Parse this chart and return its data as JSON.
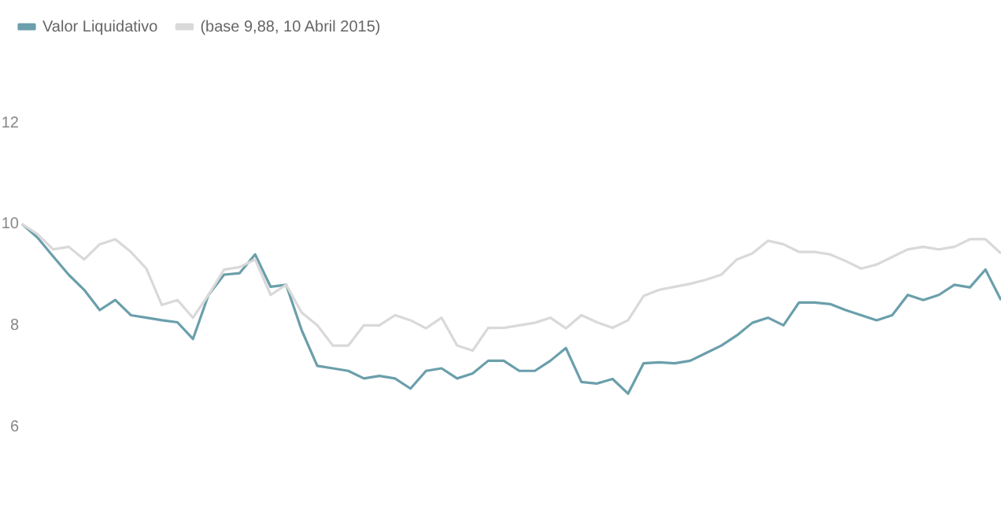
{
  "chart_data": {
    "type": "line",
    "categories": [
      null,
      null,
      null,
      null,
      null,
      null,
      null,
      null,
      null,
      null,
      null,
      null,
      null,
      null,
      null,
      null,
      null,
      null,
      null,
      null,
      null,
      null,
      null,
      null,
      null,
      null,
      null,
      null,
      null,
      null,
      null,
      null,
      null,
      null,
      null,
      null,
      null,
      null,
      null,
      null,
      null,
      null,
      null,
      null,
      null,
      null,
      null,
      null,
      null,
      null,
      null,
      null,
      null,
      null,
      null,
      null,
      null,
      null,
      null,
      null,
      null,
      null,
      null,
      null
    ],
    "series": [
      {
        "name": "Valor Liquidativo",
        "color": "#6a9fab",
        "values": [
          10.0,
          9.73,
          9.36,
          9.0,
          8.7,
          8.3,
          8.5,
          8.2,
          8.15,
          8.1,
          8.06,
          7.73,
          8.6,
          9.0,
          9.03,
          9.4,
          8.76,
          8.8,
          7.9,
          7.2,
          7.15,
          7.1,
          6.95,
          7.0,
          6.95,
          6.75,
          7.1,
          7.15,
          6.95,
          7.05,
          7.3,
          7.3,
          7.1,
          7.1,
          7.3,
          7.55,
          6.88,
          6.85,
          6.94,
          6.65,
          7.25,
          7.27,
          7.25,
          7.3,
          7.45,
          7.6,
          7.8,
          8.05,
          8.15,
          8.0,
          8.45,
          8.45,
          8.42,
          8.3,
          8.2,
          8.1,
          8.2,
          8.6,
          8.5,
          8.6,
          8.8,
          8.75,
          9.1,
          8.5
        ]
      },
      {
        "name": "(base 9,88, 10 Abril 2015)",
        "color": "#d9d9d9",
        "values": [
          10.0,
          9.8,
          9.5,
          9.55,
          9.3,
          9.6,
          9.7,
          9.45,
          9.12,
          8.4,
          8.5,
          8.15,
          8.6,
          9.1,
          9.15,
          9.3,
          8.6,
          8.8,
          8.25,
          8.0,
          7.6,
          7.6,
          8.0,
          8.0,
          8.2,
          8.1,
          7.94,
          8.15,
          7.6,
          7.5,
          7.95,
          7.95,
          8.0,
          8.05,
          8.15,
          7.94,
          8.2,
          8.06,
          7.95,
          8.1,
          8.58,
          8.7,
          8.76,
          8.82,
          8.9,
          9.0,
          9.3,
          9.42,
          9.67,
          9.6,
          9.45,
          9.45,
          9.4,
          9.27,
          9.12,
          9.2,
          9.35,
          9.5,
          9.55,
          9.5,
          9.55,
          9.7,
          9.7,
          9.42
        ]
      }
    ],
    "ylim": [
      6,
      12
    ],
    "yticks": [
      6,
      8,
      10,
      12
    ],
    "grid": false,
    "legend": "top left",
    "marker": "none",
    "line_style": "solid",
    "tick_labels": "y"
  }
}
